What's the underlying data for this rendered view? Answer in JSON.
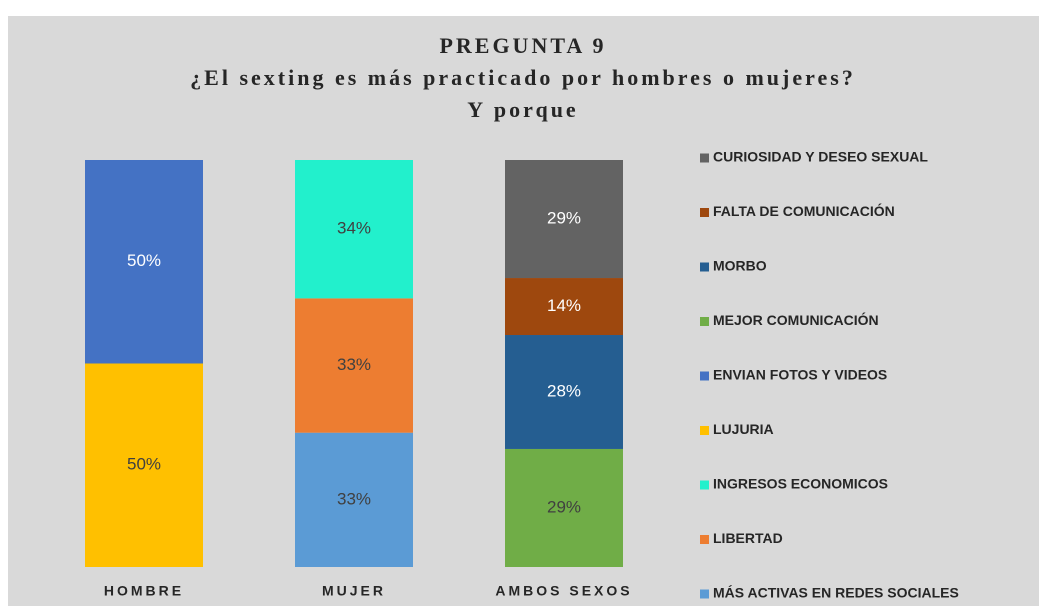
{
  "chart_data": {
    "type": "stacked_bar",
    "title": [
      "PREGUNTA 9",
      "¿El sexting es más practicado por hombres o  mujeres?",
      "Y porque"
    ],
    "categories": [
      "HOMBRE",
      "MUJER",
      "AMBOS SEXOS"
    ],
    "ylim": [
      0,
      100
    ],
    "series": [
      {
        "name": "MÁS ACTIVAS EN REDES SOCIALES",
        "color": "#5b9bd5",
        "values": [
          null,
          33,
          null
        ],
        "value_labels": [
          null,
          "33%",
          null
        ]
      },
      {
        "name": "LIBERTAD",
        "color": "#ed7d31",
        "values": [
          null,
          33,
          null
        ],
        "value_labels": [
          null,
          "33%",
          null
        ]
      },
      {
        "name": "INGRESOS ECONOMICOS",
        "color": "#22f0cc",
        "values": [
          null,
          34,
          null
        ],
        "value_labels": [
          null,
          "34%",
          null
        ]
      },
      {
        "name": "LUJURIA",
        "color": "#ffc000",
        "values": [
          50,
          null,
          null
        ],
        "value_labels": [
          "50%",
          null,
          null
        ]
      },
      {
        "name": "ENVIAN FOTOS Y VIDEOS",
        "color": "#4472c4",
        "values": [
          50,
          null,
          null
        ],
        "value_labels": [
          "50%",
          null,
          null
        ]
      },
      {
        "name": "MEJOR COMUNICACIÓN",
        "color": "#70ad47",
        "values": [
          null,
          null,
          29
        ],
        "value_labels": [
          null,
          null,
          "29%"
        ]
      },
      {
        "name": "MORBO",
        "color": "#255e91",
        "values": [
          null,
          null,
          28
        ],
        "value_labels": [
          null,
          null,
          "28%"
        ]
      },
      {
        "name": "FALTA DE COMUNICACIÓN",
        "color": "#9e480e",
        "values": [
          null,
          null,
          14
        ],
        "value_labels": [
          null,
          null,
          "14%"
        ]
      },
      {
        "name": "CURIOSIDAD Y DESEO SEXUAL",
        "color": "#636363",
        "values": [
          null,
          null,
          29
        ],
        "value_labels": [
          null,
          null,
          "29%"
        ]
      }
    ]
  }
}
